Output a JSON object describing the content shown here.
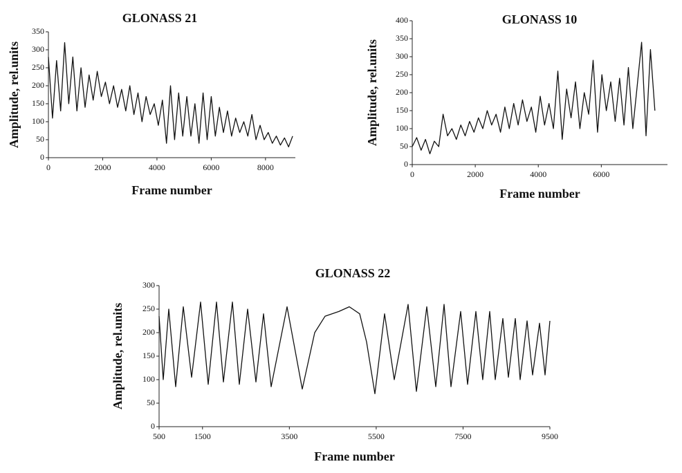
{
  "chart_data": [
    {
      "type": "line",
      "title": "GLONASS 21",
      "x_label": "Frame number",
      "y_label": "Amplitude, rel.units",
      "color": "#111111",
      "x": [
        0,
        150,
        300,
        450,
        600,
        750,
        900,
        1050,
        1200,
        1350,
        1500,
        1650,
        1800,
        1950,
        2100,
        2250,
        2400,
        2550,
        2700,
        2850,
        3000,
        3150,
        3300,
        3450,
        3600,
        3750,
        3900,
        4050,
        4200,
        4350,
        4500,
        4650,
        4800,
        4950,
        5100,
        5250,
        5400,
        5550,
        5700,
        5850,
        6000,
        6150,
        6300,
        6450,
        6600,
        6750,
        6900,
        7050,
        7200,
        7350,
        7500,
        7650,
        7800,
        7950,
        8100,
        8250,
        8400,
        8550,
        8700,
        8850,
        9000
      ],
      "values": [
        280,
        110,
        270,
        130,
        320,
        150,
        280,
        130,
        250,
        140,
        230,
        160,
        240,
        170,
        210,
        150,
        200,
        140,
        190,
        130,
        200,
        120,
        180,
        100,
        170,
        120,
        150,
        90,
        160,
        40,
        200,
        50,
        180,
        60,
        170,
        60,
        150,
        40,
        180,
        50,
        170,
        60,
        140,
        70,
        130,
        60,
        110,
        70,
        100,
        60,
        120,
        50,
        90,
        50,
        70,
        40,
        60,
        35,
        55,
        30,
        60
      ],
      "xlim": [
        0,
        9100
      ],
      "xticks": [
        0,
        2000,
        4000,
        6000,
        8000
      ],
      "ylim": [
        0,
        350
      ],
      "yticks": [
        0,
        50,
        100,
        150,
        200,
        250,
        300,
        350
      ],
      "grid": false
    },
    {
      "type": "line",
      "title": "GLONASS 10",
      "x_label": "Frame number",
      "y_label": "Amplitude, rel.units",
      "color": "#111111",
      "x": [
        0,
        140,
        280,
        420,
        560,
        700,
        840,
        980,
        1120,
        1260,
        1400,
        1540,
        1680,
        1820,
        1960,
        2100,
        2240,
        2380,
        2520,
        2660,
        2800,
        2940,
        3080,
        3220,
        3360,
        3500,
        3640,
        3780,
        3920,
        4060,
        4200,
        4340,
        4480,
        4620,
        4760,
        4900,
        5040,
        5180,
        5320,
        5460,
        5600,
        5740,
        5880,
        6020,
        6160,
        6300,
        6440,
        6580,
        6720,
        6860,
        7000,
        7140,
        7280,
        7420,
        7560,
        7700
      ],
      "values": [
        50,
        75,
        40,
        70,
        30,
        65,
        50,
        140,
        80,
        100,
        70,
        110,
        80,
        120,
        90,
        130,
        100,
        150,
        110,
        140,
        90,
        160,
        100,
        170,
        110,
        180,
        120,
        160,
        90,
        190,
        110,
        170,
        100,
        260,
        70,
        210,
        130,
        230,
        100,
        200,
        140,
        290,
        90,
        250,
        150,
        230,
        120,
        240,
        110,
        270,
        100,
        220,
        340,
        80,
        320,
        150
      ],
      "xlim": [
        0,
        8100
      ],
      "xticks": [
        0,
        2000,
        4000,
        6000
      ],
      "ylim": [
        0,
        400
      ],
      "yticks": [
        0,
        50,
        100,
        150,
        200,
        250,
        300,
        350,
        400
      ],
      "grid": false
    },
    {
      "type": "line",
      "title": "GLONASS 22",
      "x_label": "Frame number",
      "y_label": "Amplitude, rel.units",
      "color": "#111111",
      "x": [
        500,
        596,
        723,
        882,
        1058,
        1249,
        1456,
        1631,
        1822,
        1981,
        2189,
        2348,
        2539,
        2730,
        2905,
        3081,
        3447,
        3797,
        4084,
        4323,
        4642,
        4881,
        5120,
        5279,
        5470,
        5693,
        5916,
        6235,
        6426,
        6665,
        6872,
        7063,
        7222,
        7445,
        7604,
        7795,
        7954,
        8114,
        8241,
        8417,
        8544,
        8703,
        8815,
        8974,
        9102,
        9261,
        9389,
        9500
      ],
      "values": [
        235,
        100,
        250,
        85,
        255,
        105,
        265,
        90,
        265,
        95,
        265,
        90,
        250,
        95,
        240,
        85,
        255,
        80,
        200,
        235,
        245,
        255,
        240,
        180,
        70,
        240,
        100,
        260,
        75,
        255,
        85,
        260,
        85,
        245,
        90,
        245,
        100,
        245,
        100,
        230,
        105,
        230,
        100,
        225,
        110,
        220,
        110,
        225
      ],
      "xlim": [
        500,
        9500
      ],
      "xticks": [
        500,
        1500,
        3500,
        5500,
        7500,
        9500
      ],
      "ylim": [
        0,
        300
      ],
      "yticks": [
        0,
        50,
        100,
        150,
        200,
        250,
        300
      ],
      "grid": false
    }
  ]
}
